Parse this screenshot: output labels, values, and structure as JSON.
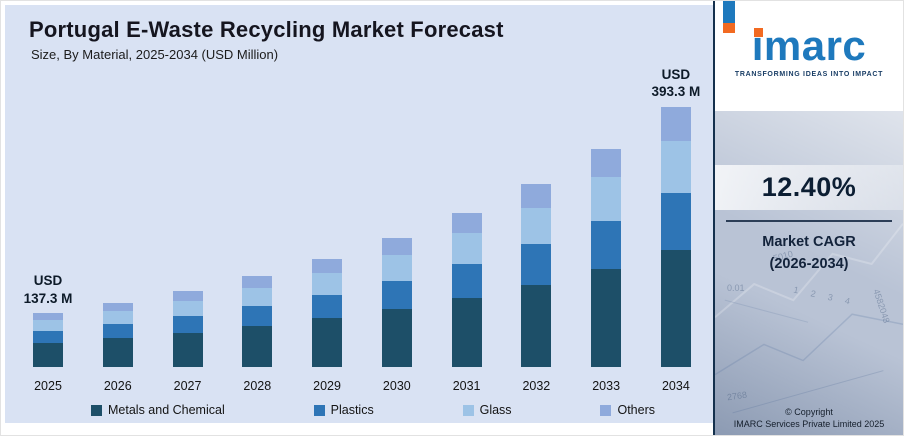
{
  "chart": {
    "annotation_note": ""
  },
  "chart_data": {
    "type": "bar",
    "stacked": true,
    "title": "Portugal E-Waste Recycling Market Forecast",
    "subtitle": "Size, By Material, 2025-2034 (USD Million)",
    "unit": "USD Million",
    "categories": [
      "2025",
      "2026",
      "2027",
      "2028",
      "2029",
      "2030",
      "2031",
      "2032",
      "2033",
      "2034"
    ],
    "series": [
      {
        "name": "Metals and Chemical",
        "color": "#1d4f68",
        "values": [
          61.8,
          69.4,
          78.1,
          87.8,
          98.7,
          110.9,
          124.7,
          140.1,
          157.5,
          177.0
        ]
      },
      {
        "name": "Plastics",
        "color": "#2e75b6",
        "values": [
          30.2,
          33.9,
          38.2,
          42.9,
          48.2,
          54.2,
          60.9,
          68.5,
          77.0,
          86.5
        ]
      },
      {
        "name": "Glass",
        "color": "#9dc3e6",
        "values": [
          27.5,
          30.9,
          34.7,
          39.0,
          43.8,
          49.3,
          55.4,
          62.3,
          70.0,
          78.7
        ]
      },
      {
        "name": "Others",
        "color": "#8faadc",
        "values": [
          17.8,
          20.1,
          22.5,
          25.3,
          28.5,
          32.0,
          36.0,
          40.4,
          45.4,
          51.1
        ]
      }
    ],
    "totals": [
      137.3,
      154.3,
      173.5,
      195.0,
      219.2,
      246.4,
      277.0,
      311.3,
      349.9,
      393.3
    ],
    "annotations": [
      {
        "index": 0,
        "line1": "USD",
        "line2": "137.3 M"
      },
      {
        "index": 9,
        "line1": "USD",
        "line2": "393.3 M"
      }
    ],
    "legend_position": "bottom",
    "gridlines": false,
    "ylim": [
      0,
      393.3
    ],
    "display_scale_power": 1.5
  },
  "panel": {
    "logo_text": "imarc",
    "tagline": "TRANSFORMING IDEAS INTO IMPACT",
    "cagr_value": "12.40%",
    "cagr_label1": "Market CAGR",
    "cagr_label2": "(2026-2034)",
    "copyright_line1": "© Copyright",
    "copyright_line2": "IMARC Services Private Limited 2025",
    "texture": [
      "5010",
      "0.01",
      "1 2 3 4",
      "4582048",
      "2768"
    ],
    "colors": {
      "brand_blue": "#1e79bd",
      "brand_orange": "#f26a21",
      "panel_bg": "#b9c3d5",
      "chart_bg": "#d9e2f3"
    }
  }
}
